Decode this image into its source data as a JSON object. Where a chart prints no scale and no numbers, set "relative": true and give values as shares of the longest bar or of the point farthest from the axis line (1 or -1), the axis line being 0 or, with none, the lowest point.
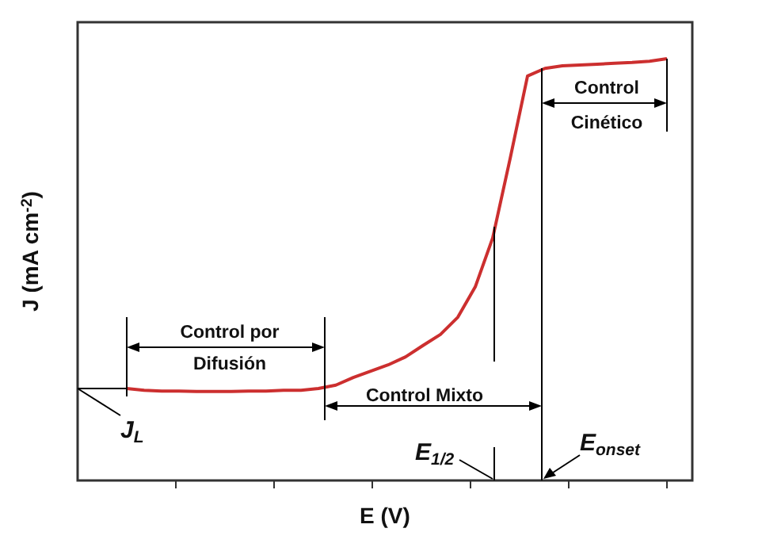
{
  "chart_data": {
    "type": "line",
    "relative": true,
    "xlabel": "E (V)",
    "ylabel": "J (mA cm$^{-2}$)",
    "grid": false,
    "legend": false,
    "marker": "none",
    "line_style": "solid",
    "categories": [
      null,
      null,
      null,
      null,
      null,
      null,
      null,
      null,
      null,
      null,
      null,
      null,
      null,
      null,
      null,
      null,
      null,
      null,
      null,
      null,
      null,
      null,
      null,
      null,
      null,
      null,
      null,
      null,
      null,
      null,
      null,
      null
    ],
    "series": [
      {
        "color": "#cc2f2f",
        "values": [
          0.218,
          0.214,
          0.212,
          0.212,
          0.211,
          0.211,
          0.211,
          0.212,
          0.212,
          0.214,
          0.214,
          0.218,
          0.226,
          0.244,
          0.259,
          0.274,
          0.293,
          0.32,
          0.346,
          0.387,
          0.459,
          0.575,
          0.763,
          0.959,
          0.977,
          0.983,
          0.985,
          0.987,
          0.989,
          0.991,
          0.994,
          1
        ]
      }
    ],
    "annotations": [
      "Control por Difusión",
      "Control Mixto",
      "Control Cinético",
      "J$_{L}$",
      "E$_{1/2}$",
      "E$_{onset}$"
    ]
  }
}
